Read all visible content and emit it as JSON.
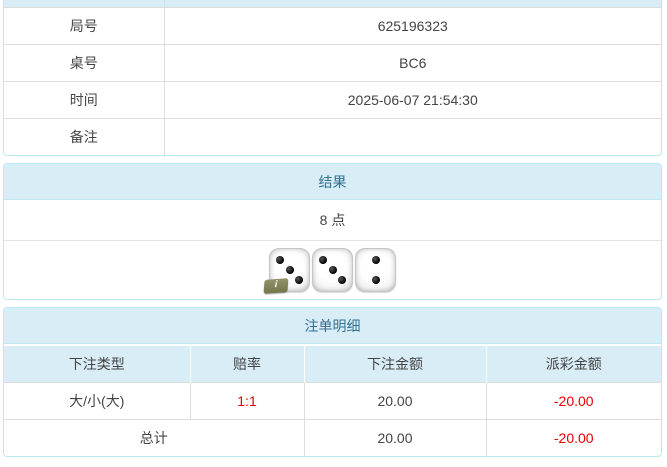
{
  "colors": {
    "panel_border": "#bce8f1",
    "heading_bg": "#d9edf7",
    "heading_text": "#31708f",
    "row_divider": "#dddddd",
    "body_text": "#444444",
    "negative_red": "#e60000",
    "badge_olive": "#75754c"
  },
  "game_info": {
    "rows": [
      {
        "label": "局号",
        "value": "625196323"
      },
      {
        "label": "桌号",
        "value": "BC6"
      },
      {
        "label": "时间",
        "value": "2025-06-07 21:54:30"
      },
      {
        "label": "备注",
        "value": ""
      }
    ]
  },
  "result": {
    "title": "结果",
    "points": "8 点",
    "dice": [
      3,
      3,
      2
    ],
    "info_badge": "i"
  },
  "bet_details": {
    "title": "注单明细",
    "columns": [
      "下注类型",
      "赔率",
      "下注金额",
      "派彩金额"
    ],
    "rows": [
      {
        "type": "大/小(大)",
        "odds": "1:1",
        "bet": "20.00",
        "payout": "-20.00"
      }
    ],
    "total": {
      "label": "总计",
      "bet": "20.00",
      "payout": "-20.00"
    }
  }
}
